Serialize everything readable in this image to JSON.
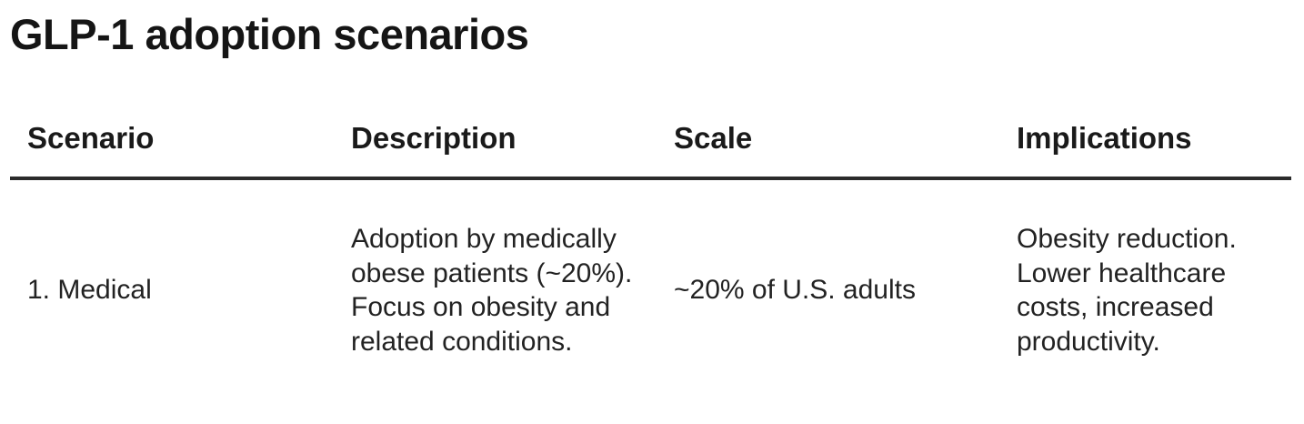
{
  "title": "GLP-1 adoption scenarios",
  "table": {
    "headers": [
      "Scenario",
      "Description",
      "Scale",
      "Implications"
    ],
    "rows": [
      {
        "scenario": "1. Medical",
        "description": "Adoption by medically obese patients (~20%). Focus on obesity and related conditions.",
        "scale": "~20% of U.S. adults",
        "implications": "Obesity reduction. Lower healthcare costs, increased productivity."
      }
    ]
  }
}
